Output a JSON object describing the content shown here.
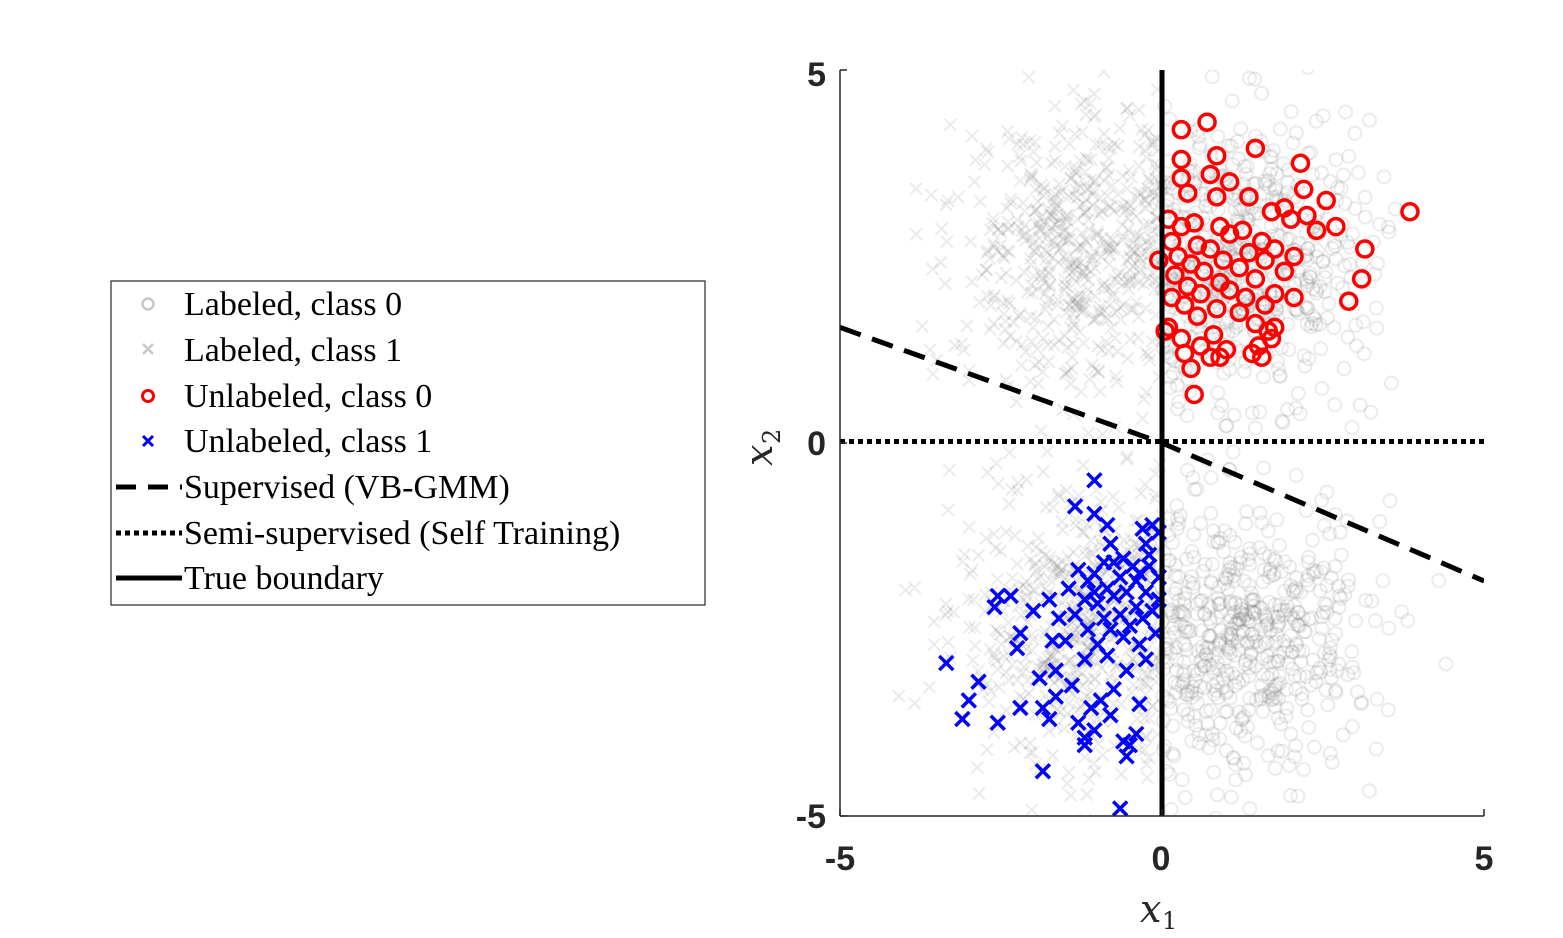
{
  "chart_data": {
    "type": "scatter",
    "title": "",
    "xlabel": "x",
    "xlabel_sub": "1",
    "ylabel": "x",
    "ylabel_sub": "2",
    "xlim": [
      -5,
      5
    ],
    "ylim": [
      -5,
      5
    ],
    "xticks": [
      "-5",
      "0",
      "5"
    ],
    "yticks": [
      "-5",
      "0",
      "5"
    ],
    "grid": false,
    "legend_position": "left, outside plot",
    "series": [
      {
        "name": "Labeled, class 0",
        "marker": "circle",
        "color": "#a0a0a0",
        "distribution": "dense cloud of about 1000 points centered near (1.3, 2.4) for x1 > 0, x2 > 0 and near (1.3, -2.6) for x1 > 0, x2 < 0"
      },
      {
        "name": "Labeled, class 1",
        "marker": "x",
        "color": "#a0a0a0",
        "distribution": "dense cloud of about 1000 points centered near (-1.3, 2.6) for x1 < 0, x2 > 0 and near (-1.3, -2.4) for x1 < 0, x2 < 0"
      },
      {
        "name": "Unlabeled, class 0",
        "marker": "circle",
        "color": "#ff0000",
        "points": [
          [
            3.85,
            3.1
          ],
          [
            0.7,
            4.3
          ],
          [
            0.3,
            4.2
          ],
          [
            1.45,
            3.95
          ],
          [
            0.85,
            3.85
          ],
          [
            0.3,
            3.8
          ],
          [
            2.15,
            3.75
          ],
          [
            0.75,
            3.6
          ],
          [
            0.3,
            3.55
          ],
          [
            1.05,
            3.5
          ],
          [
            2.2,
            3.4
          ],
          [
            0.4,
            3.35
          ],
          [
            0.85,
            3.3
          ],
          [
            1.35,
            3.3
          ],
          [
            2.55,
            3.25
          ],
          [
            1.9,
            3.15
          ],
          [
            1.7,
            3.1
          ],
          [
            2.25,
            3.05
          ],
          [
            0.1,
            3.0
          ],
          [
            0.5,
            2.95
          ],
          [
            2.0,
            3.0
          ],
          [
            0.3,
            2.9
          ],
          [
            0.9,
            2.9
          ],
          [
            1.25,
            2.85
          ],
          [
            2.4,
            2.85
          ],
          [
            2.7,
            2.9
          ],
          [
            1.05,
            2.8
          ],
          [
            0.15,
            2.7
          ],
          [
            0.55,
            2.65
          ],
          [
            1.55,
            2.7
          ],
          [
            0.75,
            2.6
          ],
          [
            1.35,
            2.55
          ],
          [
            2.05,
            2.5
          ],
          [
            1.75,
            2.6
          ],
          [
            3.15,
            2.6
          ],
          [
            0.25,
            2.5
          ],
          [
            0.95,
            2.45
          ],
          [
            1.6,
            2.45
          ],
          [
            -0.05,
            2.45
          ],
          [
            0.45,
            2.4
          ],
          [
            1.2,
            2.35
          ],
          [
            0.65,
            2.3
          ],
          [
            1.9,
            2.3
          ],
          [
            0.2,
            2.25
          ],
          [
            1.45,
            2.2
          ],
          [
            0.9,
            2.15
          ],
          [
            0.4,
            2.1
          ],
          [
            1.05,
            2.05
          ],
          [
            0.6,
            2.0
          ],
          [
            1.75,
            2.0
          ],
          [
            3.1,
            2.2
          ],
          [
            0.15,
            1.95
          ],
          [
            1.3,
            1.95
          ],
          [
            1.6,
            1.85
          ],
          [
            2.05,
            1.95
          ],
          [
            0.35,
            1.85
          ],
          [
            0.85,
            1.8
          ],
          [
            1.2,
            1.75
          ],
          [
            2.9,
            1.9
          ],
          [
            0.55,
            1.7
          ],
          [
            1.45,
            1.6
          ],
          [
            0.1,
            1.55
          ],
          [
            1.75,
            1.55
          ],
          [
            1.4,
            1.2
          ],
          [
            0.05,
            1.5
          ],
          [
            0.8,
            1.45
          ],
          [
            1.65,
            1.5
          ],
          [
            0.3,
            1.4
          ],
          [
            1.7,
            1.4
          ],
          [
            0.6,
            1.3
          ],
          [
            1.0,
            1.25
          ],
          [
            0.35,
            1.2
          ],
          [
            0.75,
            1.15
          ],
          [
            1.55,
            1.15
          ],
          [
            0.9,
            1.15
          ],
          [
            0.45,
            1.0
          ],
          [
            0.5,
            0.65
          ],
          [
            1.5,
            1.3
          ]
        ]
      },
      {
        "name": "Unlabeled, class 1",
        "marker": "x",
        "color": "#0000ff",
        "points": [
          [
            -1.05,
            -0.5
          ],
          [
            -1.35,
            -0.85
          ],
          [
            -1.05,
            -0.95
          ],
          [
            -0.85,
            -1.1
          ],
          [
            -0.3,
            -1.15
          ],
          [
            -0.15,
            -1.1
          ],
          [
            -0.05,
            -1.2
          ],
          [
            -0.8,
            -1.35
          ],
          [
            -0.25,
            -1.35
          ],
          [
            -0.6,
            -1.55
          ],
          [
            -0.75,
            -1.6
          ],
          [
            -0.45,
            -1.65
          ],
          [
            -0.9,
            -1.6
          ],
          [
            -0.2,
            -1.65
          ],
          [
            -0.35,
            -1.75
          ],
          [
            -0.05,
            -1.8
          ],
          [
            -1.3,
            -1.7
          ],
          [
            -1.05,
            -1.75
          ],
          [
            -0.65,
            -1.8
          ],
          [
            -0.4,
            -1.85
          ],
          [
            -1.15,
            -1.85
          ],
          [
            -0.85,
            -1.95
          ],
          [
            -1.45,
            -1.95
          ],
          [
            -0.55,
            -2.0
          ],
          [
            -0.25,
            -2.0
          ],
          [
            -0.75,
            -2.05
          ],
          [
            -0.05,
            -2.1
          ],
          [
            -1.2,
            -2.1
          ],
          [
            -2.55,
            -2.05
          ],
          [
            -2.35,
            -2.05
          ],
          [
            -1.75,
            -2.1
          ],
          [
            -1.0,
            -2.15
          ],
          [
            -0.4,
            -2.2
          ],
          [
            -2.6,
            -2.2
          ],
          [
            -0.15,
            -2.25
          ],
          [
            -0.65,
            -2.3
          ],
          [
            -1.35,
            -2.3
          ],
          [
            -0.9,
            -2.35
          ],
          [
            -0.3,
            -2.35
          ],
          [
            -1.6,
            -2.35
          ],
          [
            -2.0,
            -2.25
          ],
          [
            -0.5,
            -2.45
          ],
          [
            -1.15,
            -2.5
          ],
          [
            -0.8,
            -2.5
          ],
          [
            -2.2,
            -2.55
          ],
          [
            -0.1,
            -2.55
          ],
          [
            -1.5,
            -2.65
          ],
          [
            -0.6,
            -2.6
          ],
          [
            -0.35,
            -2.7
          ],
          [
            -1.7,
            -2.65
          ],
          [
            -1.0,
            -2.7
          ],
          [
            -0.85,
            -2.85
          ],
          [
            -2.25,
            -2.75
          ],
          [
            -1.2,
            -2.9
          ],
          [
            -0.25,
            -2.9
          ],
          [
            -3.35,
            -2.95
          ],
          [
            -0.55,
            -3.05
          ],
          [
            -1.65,
            -3.05
          ],
          [
            -1.9,
            -3.15
          ],
          [
            -2.85,
            -3.2
          ],
          [
            -1.4,
            -3.25
          ],
          [
            -0.75,
            -3.3
          ],
          [
            -0.95,
            -3.45
          ],
          [
            -1.65,
            -3.4
          ],
          [
            -3.0,
            -3.45
          ],
          [
            -2.2,
            -3.55
          ],
          [
            -1.85,
            -3.55
          ],
          [
            -1.1,
            -3.55
          ],
          [
            -0.8,
            -3.65
          ],
          [
            -0.35,
            -3.5
          ],
          [
            -2.55,
            -3.75
          ],
          [
            -3.1,
            -3.7
          ],
          [
            -1.3,
            -3.75
          ],
          [
            -1.75,
            -3.7
          ],
          [
            -0.4,
            -3.9
          ],
          [
            -1.05,
            -3.85
          ],
          [
            -1.2,
            -3.95
          ],
          [
            -0.55,
            -4.2
          ],
          [
            -1.2,
            -4.05
          ],
          [
            -0.6,
            -4.0
          ],
          [
            -0.5,
            -4.05
          ],
          [
            -1.85,
            -4.4
          ],
          [
            -0.65,
            -4.9
          ],
          [
            -1.05,
            -2.0
          ],
          [
            -0.2,
            -1.5
          ]
        ]
      },
      {
        "name": "Supervised (VB-GMM)",
        "line_style": "dashed",
        "color": "#000000",
        "x": [
          -5,
          0,
          5
        ],
        "y": [
          1.55,
          0.0,
          -1.85
        ]
      },
      {
        "name": "Semi-supervised (Self Training)",
        "line_style": "dotted",
        "color": "#000000",
        "x": [
          -5,
          5
        ],
        "y": [
          0.02,
          0.02
        ]
      },
      {
        "name": "True boundary",
        "line_style": "solid",
        "color": "#000000",
        "x": [
          0,
          0
        ],
        "y": [
          -5,
          5
        ]
      }
    ]
  }
}
